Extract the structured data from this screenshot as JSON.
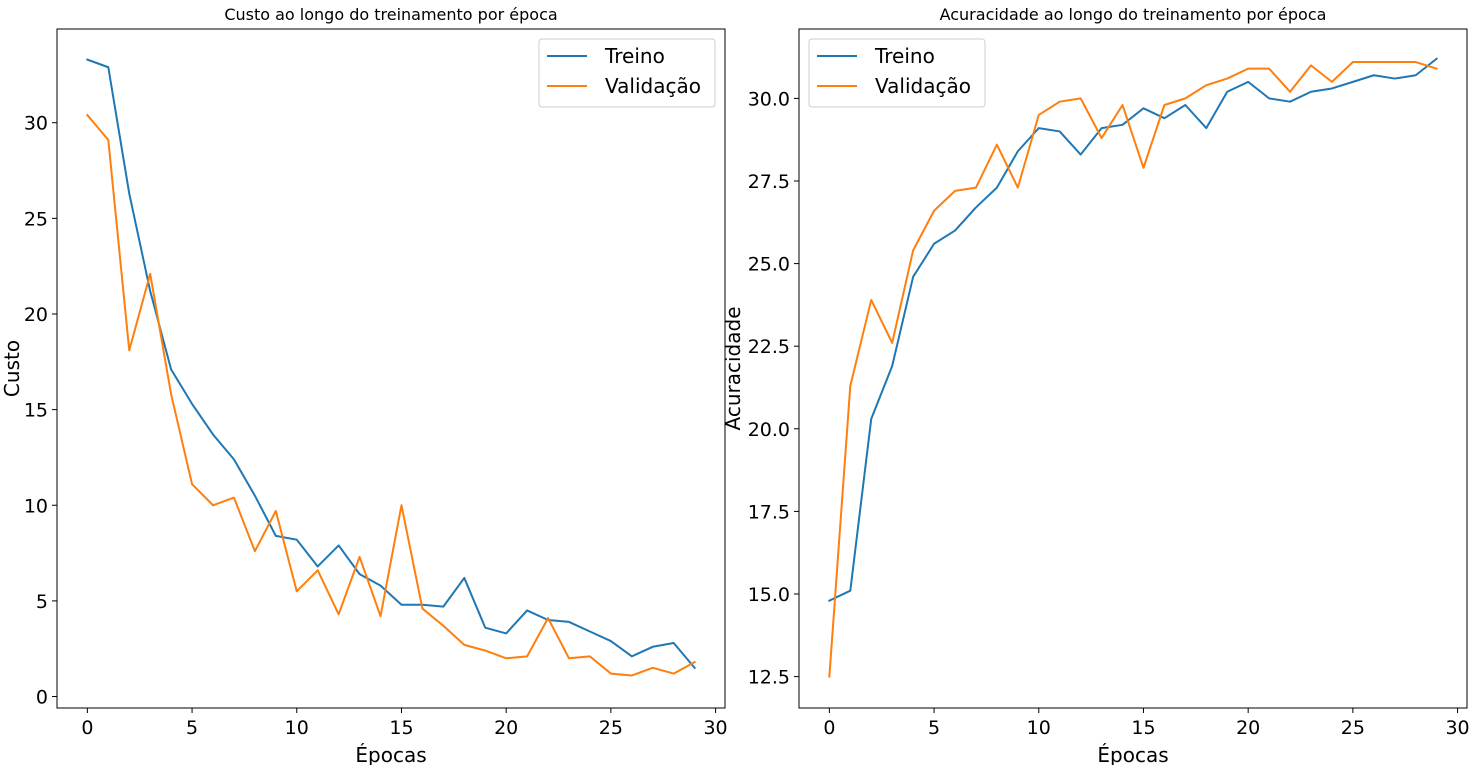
{
  "chart_data": [
    {
      "type": "line",
      "title": "Custo ao longo do treinamento por época",
      "xlabel": "Épocas",
      "ylabel": "Custo",
      "xlim": [
        -1.45,
        30.45
      ],
      "ylim": [
        -0.6,
        34.9
      ],
      "xticks": [
        0,
        5,
        10,
        15,
        20,
        25,
        30
      ],
      "yticks": [
        0,
        5,
        10,
        15,
        20,
        25,
        30
      ],
      "xtick_labels": [
        "0",
        "5",
        "10",
        "15",
        "20",
        "25",
        "30"
      ],
      "ytick_labels": [
        "0",
        "5",
        "10",
        "15",
        "20",
        "25",
        "30"
      ],
      "grid": false,
      "legend_position": "upper right",
      "x": [
        0,
        1,
        2,
        3,
        4,
        5,
        6,
        7,
        8,
        9,
        10,
        11,
        12,
        13,
        14,
        15,
        16,
        17,
        18,
        19,
        20,
        21,
        22,
        23,
        24,
        25,
        26,
        27,
        28,
        29
      ],
      "series": [
        {
          "name": "Treino",
          "color": "#1f77b4",
          "values": [
            33.3,
            32.9,
            26.3,
            21.2,
            17.1,
            15.3,
            13.7,
            12.4,
            10.5,
            8.4,
            8.2,
            6.8,
            7.9,
            6.4,
            5.8,
            4.8,
            4.8,
            4.7,
            6.2,
            3.6,
            3.3,
            4.5,
            4.0,
            3.9,
            3.4,
            2.9,
            2.1,
            2.6,
            2.8,
            1.5
          ]
        },
        {
          "name": "Validação",
          "color": "#ff7f0e",
          "values": [
            30.4,
            29.1,
            18.1,
            22.1,
            15.8,
            11.1,
            10.0,
            10.4,
            7.6,
            9.7,
            5.5,
            6.6,
            4.3,
            7.3,
            4.2,
            10.0,
            4.6,
            3.7,
            2.7,
            2.4,
            2.0,
            2.1,
            4.1,
            2.0,
            2.1,
            1.2,
            1.1,
            1.5,
            1.2,
            1.8
          ]
        }
      ]
    },
    {
      "type": "line",
      "title": "Acuracidade ao longo do treinamento por época",
      "xlabel": "Épocas",
      "ylabel": "Acuracidade",
      "xlim": [
        -1.45,
        30.45
      ],
      "ylim": [
        11.55,
        32.1
      ],
      "xticks": [
        0,
        5,
        10,
        15,
        20,
        25,
        30
      ],
      "yticks": [
        12.5,
        15.0,
        17.5,
        20.0,
        22.5,
        25.0,
        27.5,
        30.0
      ],
      "xtick_labels": [
        "0",
        "5",
        "10",
        "15",
        "20",
        "25",
        "30"
      ],
      "ytick_labels": [
        "12.5",
        "15.0",
        "17.5",
        "20.0",
        "22.5",
        "25.0",
        "27.5",
        "30.0"
      ],
      "grid": false,
      "legend_position": "upper left",
      "x": [
        0,
        1,
        2,
        3,
        4,
        5,
        6,
        7,
        8,
        9,
        10,
        11,
        12,
        13,
        14,
        15,
        16,
        17,
        18,
        19,
        20,
        21,
        22,
        23,
        24,
        25,
        26,
        27,
        28,
        29
      ],
      "series": [
        {
          "name": "Treino",
          "color": "#1f77b4",
          "values": [
            14.8,
            15.1,
            20.3,
            21.9,
            24.6,
            25.6,
            26.0,
            26.7,
            27.3,
            28.4,
            29.1,
            29.0,
            28.3,
            29.1,
            29.2,
            29.7,
            29.4,
            29.8,
            29.1,
            30.2,
            30.5,
            30.0,
            29.9,
            30.2,
            30.3,
            30.5,
            30.7,
            30.6,
            30.7,
            31.2
          ]
        },
        {
          "name": "Validação",
          "color": "#ff7f0e",
          "values": [
            12.5,
            21.3,
            23.9,
            22.6,
            25.4,
            26.6,
            27.2,
            27.3,
            28.6,
            27.3,
            29.5,
            29.9,
            30.0,
            28.8,
            29.8,
            27.9,
            29.8,
            30.0,
            30.4,
            30.6,
            30.9,
            30.9,
            30.2,
            31.0,
            30.5,
            31.1,
            31.1,
            31.1,
            31.1,
            30.9
          ]
        }
      ]
    }
  ]
}
